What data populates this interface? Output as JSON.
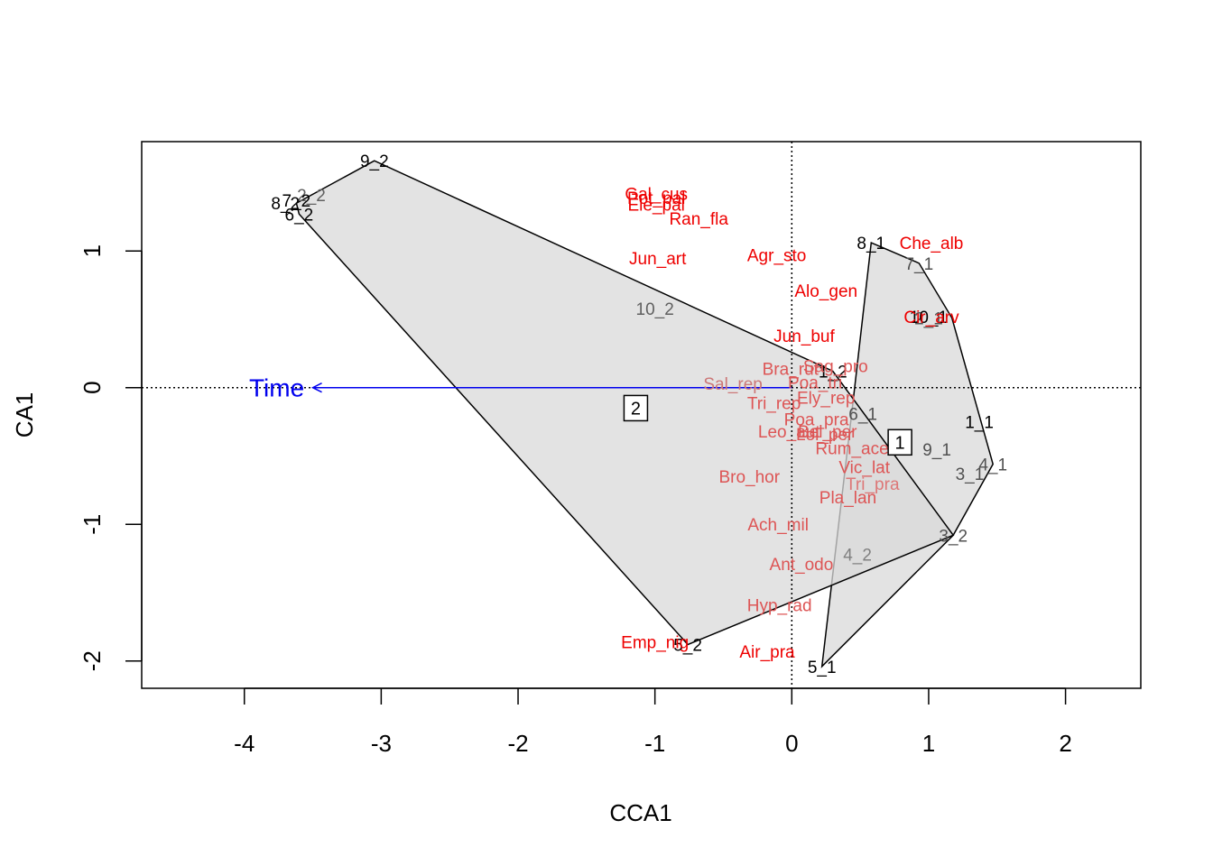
{
  "chart_data": {
    "type": "scatter",
    "title": "",
    "xlabel": "CCA1",
    "ylabel": "CA1",
    "xlim": [
      -4.75,
      2.55
    ],
    "ylim": [
      -2.2,
      1.8
    ],
    "x_ticks": [
      -4,
      -3,
      -2,
      -1,
      0,
      1,
      2
    ],
    "y_ticks": [
      -2,
      -1,
      0,
      1
    ],
    "x_tick_labels": [
      "-4",
      "-3",
      "-2",
      "-1",
      "0",
      "1",
      "2"
    ],
    "y_tick_labels": [
      "-2",
      "-1",
      "0",
      "1"
    ],
    "reference_lines": {
      "x": 0,
      "y": 0,
      "style": "dotted"
    },
    "hulls": [
      {
        "group": "1",
        "color": "#d9d9d9",
        "points": [
          [
            0.58,
            1.06
          ],
          [
            0.93,
            0.91
          ],
          [
            1.17,
            0.51
          ],
          [
            1.47,
            -0.56
          ],
          [
            1.18,
            -1.08
          ],
          [
            0.22,
            -2.04
          ],
          [
            0.44,
            -0.17
          ]
        ]
      },
      {
        "group": "2",
        "color": "#d9d9d9",
        "points": [
          [
            -3.05,
            1.66
          ],
          [
            -3.62,
            1.35
          ],
          [
            -3.6,
            1.27
          ],
          [
            -0.76,
            -1.88
          ],
          [
            1.18,
            -1.08
          ],
          [
            0.3,
            0.12
          ]
        ]
      }
    ],
    "centroids": [
      {
        "label": "1",
        "x": 0.79,
        "y": -0.4
      },
      {
        "label": "2",
        "x": -1.14,
        "y": -0.15
      }
    ],
    "sites": [
      {
        "label": "1_1",
        "x": 1.37,
        "y": -0.25,
        "color": "#000000"
      },
      {
        "label": "2_1",
        "x": 1.0,
        "y": 0.51,
        "color": "#505050"
      },
      {
        "label": "3_1",
        "x": 1.3,
        "y": -0.63,
        "color": "#505050"
      },
      {
        "label": "4_1",
        "x": 1.47,
        "y": -0.56,
        "color": "#505050"
      },
      {
        "label": "5_1",
        "x": 0.22,
        "y": -2.04,
        "color": "#000000"
      },
      {
        "label": "6_1",
        "x": 0.52,
        "y": -0.19,
        "color": "#505050"
      },
      {
        "label": "7_1",
        "x": 0.93,
        "y": 0.91,
        "color": "#505050"
      },
      {
        "label": "8_1",
        "x": 0.58,
        "y": 1.06,
        "color": "#000000"
      },
      {
        "label": "9_1",
        "x": 1.06,
        "y": -0.45,
        "color": "#505050"
      },
      {
        "label": "10_1",
        "x": 1.0,
        "y": 0.52,
        "color": "#000000"
      },
      {
        "label": "1_2",
        "x": 0.3,
        "y": 0.12,
        "color": "#000000"
      },
      {
        "label": "2_2",
        "x": -3.51,
        "y": 1.41,
        "color": "#606060"
      },
      {
        "label": "3_2",
        "x": 1.18,
        "y": -1.08,
        "color": "#505050"
      },
      {
        "label": "4_2",
        "x": 0.48,
        "y": -1.22,
        "color": "#808080"
      },
      {
        "label": "5_2",
        "x": -0.76,
        "y": -1.88,
        "color": "#000000"
      },
      {
        "label": "6_2",
        "x": -3.6,
        "y": 1.27,
        "color": "#000000"
      },
      {
        "label": "7_2",
        "x": -3.62,
        "y": 1.37,
        "color": "#000000"
      },
      {
        "label": "8_2",
        "x": -3.7,
        "y": 1.35,
        "color": "#000000"
      },
      {
        "label": "9_2",
        "x": -3.05,
        "y": 1.66,
        "color": "#000000"
      },
      {
        "label": "10_2",
        "x": -1.0,
        "y": 0.58,
        "color": "#606060"
      }
    ],
    "species": [
      {
        "label": "Gal_cus",
        "x": -0.99,
        "y": 1.42,
        "color": "#ee0000"
      },
      {
        "label": "Pot_pal",
        "x": -0.99,
        "y": 1.39,
        "color": "#ee0000"
      },
      {
        "label": "Ele_pal",
        "x": -0.99,
        "y": 1.34,
        "color": "#ee0000"
      },
      {
        "label": "Ran_fla",
        "x": -0.68,
        "y": 1.24,
        "color": "#ee0000"
      },
      {
        "label": "Jun_art",
        "x": -0.98,
        "y": 0.95,
        "color": "#ee0000"
      },
      {
        "label": "Agr_sto",
        "x": -0.11,
        "y": 0.97,
        "color": "#ee0000"
      },
      {
        "label": "Che_alb",
        "x": 1.02,
        "y": 1.06,
        "color": "#ee0000"
      },
      {
        "label": "Alo_gen",
        "x": 0.25,
        "y": 0.71,
        "color": "#ee0000"
      },
      {
        "label": "Cir_arv",
        "x": 1.02,
        "y": 0.52,
        "color": "#ee0000"
      },
      {
        "label": "Jun_buf",
        "x": 0.09,
        "y": 0.38,
        "color": "#ee0000"
      },
      {
        "label": "Bra_rut",
        "x": -0.01,
        "y": 0.14,
        "color": "#dd5555"
      },
      {
        "label": "Sag_pro",
        "x": 0.32,
        "y": 0.16,
        "color": "#dd5555"
      },
      {
        "label": "Sal_rep",
        "x": -0.43,
        "y": 0.03,
        "color": "#cc7777"
      },
      {
        "label": "Poa_tri",
        "x": 0.17,
        "y": 0.04,
        "color": "#dd5555"
      },
      {
        "label": "Ely_rep",
        "x": 0.25,
        "y": -0.07,
        "color": "#dd5555"
      },
      {
        "label": "Tri_rep",
        "x": -0.13,
        "y": -0.11,
        "color": "#dd5555"
      },
      {
        "label": "Poa_pra",
        "x": 0.18,
        "y": -0.23,
        "color": "#dd5555"
      },
      {
        "label": "Leo_aut",
        "x": -0.02,
        "y": -0.32,
        "color": "#dd5555"
      },
      {
        "label": "Bel_per",
        "x": 0.26,
        "y": -0.32,
        "color": "#dd5555"
      },
      {
        "label": "Lol_per",
        "x": 0.24,
        "y": -0.34,
        "color": "#dd5555"
      },
      {
        "label": "Rum_ace",
        "x": 0.44,
        "y": -0.44,
        "color": "#dd5555"
      },
      {
        "label": "Vic_lat",
        "x": 0.53,
        "y": -0.58,
        "color": "#dd5555"
      },
      {
        "label": "Tri_pra",
        "x": 0.59,
        "y": -0.7,
        "color": "#dd7777"
      },
      {
        "label": "Bro_hor",
        "x": -0.31,
        "y": -0.65,
        "color": "#dd5555"
      },
      {
        "label": "Pla_lan",
        "x": 0.41,
        "y": -0.8,
        "color": "#dd5555"
      },
      {
        "label": "Ach_mil",
        "x": -0.1,
        "y": -1.0,
        "color": "#dd5555"
      },
      {
        "label": "Ant_odo",
        "x": 0.07,
        "y": -1.29,
        "color": "#dd5555"
      },
      {
        "label": "Hyp_rad",
        "x": -0.09,
        "y": -1.59,
        "color": "#dd5555"
      },
      {
        "label": "Emp_nig",
        "x": -1.0,
        "y": -1.86,
        "color": "#ee0000"
      },
      {
        "label": "Air_pra",
        "x": -0.18,
        "y": -1.93,
        "color": "#ee0000"
      }
    ],
    "biplot_arrows": [
      {
        "label": "Time",
        "x_end": -3.5,
        "y_end": 0.0,
        "color": "#0000ee"
      }
    ]
  }
}
